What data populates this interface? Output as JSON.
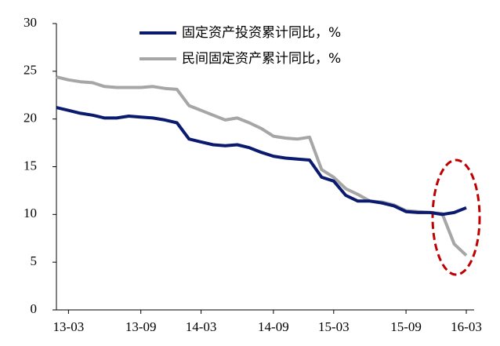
{
  "chart_data": {
    "type": "line",
    "categories": [
      null,
      "13-03",
      null,
      null,
      null,
      null,
      null,
      "13-09",
      null,
      null,
      null,
      null,
      "14-03",
      null,
      null,
      null,
      null,
      null,
      "14-09",
      null,
      null,
      null,
      null,
      "15-03",
      null,
      null,
      null,
      null,
      null,
      "15-09",
      null,
      null,
      null,
      null,
      "16-03"
    ],
    "series": [
      {
        "name": "固定资产投资累计同比，%",
        "color": "#0a1a6e",
        "values": [
          21.2,
          20.9,
          20.6,
          20.4,
          20.1,
          20.1,
          20.3,
          20.2,
          20.1,
          19.9,
          19.6,
          17.9,
          17.6,
          17.3,
          17.2,
          17.3,
          17.0,
          16.5,
          16.1,
          15.9,
          15.8,
          15.7,
          13.9,
          13.5,
          12.0,
          11.4,
          11.4,
          11.2,
          10.9,
          10.3,
          10.2,
          10.2,
          10.0,
          10.2,
          10.7
        ]
      },
      {
        "name": "民间固定资产累计同比，%",
        "color": "#a6a6a6",
        "values": [
          24.4,
          24.1,
          23.9,
          23.8,
          23.4,
          23.3,
          23.3,
          23.3,
          23.4,
          23.2,
          23.1,
          21.4,
          20.9,
          20.4,
          19.9,
          20.1,
          19.6,
          19.0,
          18.2,
          18.0,
          17.9,
          18.1,
          14.7,
          13.9,
          12.7,
          12.1,
          11.4,
          11.3,
          11.0,
          10.4,
          10.3,
          10.2,
          10.1,
          6.9,
          5.7
        ]
      }
    ],
    "ylim": [
      0,
      30
    ],
    "yticks": [
      0,
      5,
      10,
      15,
      20,
      25,
      30
    ]
  }
}
